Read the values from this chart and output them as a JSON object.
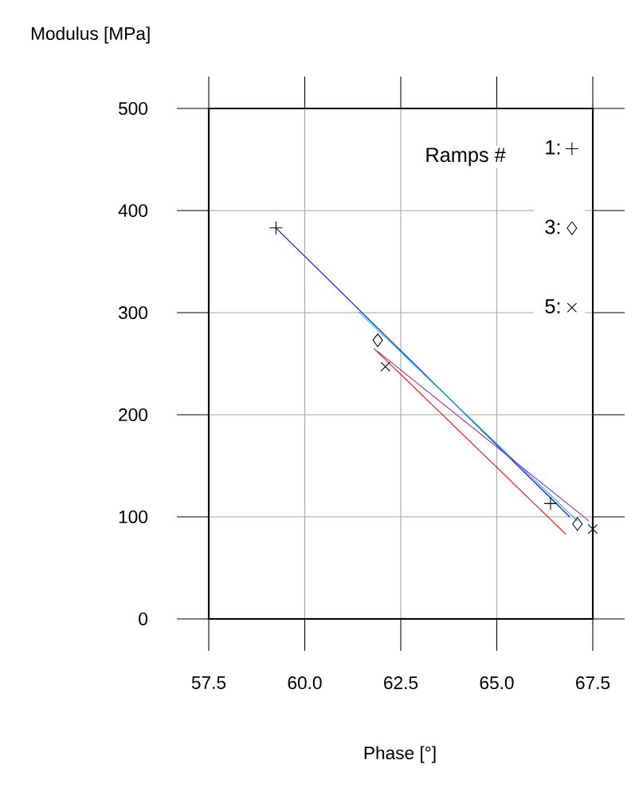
{
  "chart_data": {
    "type": "scatter",
    "xlabel": "Phase [°]",
    "ylabel": "Modulus [MPa]",
    "legend_title": "Ramps #",
    "xlim": [
      57.5,
      67.5
    ],
    "ylim": [
      0,
      500
    ],
    "xticks": [
      57.5,
      {
        "value": 60,
        "label": "60.0"
      },
      62.5,
      {
        "value": 65,
        "label": "65.0"
      },
      67.5
    ],
    "yticks": [
      0,
      100,
      200,
      300,
      400,
      500
    ],
    "grid": true,
    "legend": "top right",
    "series": [
      {
        "type": "line",
        "color": "#0000ff",
        "x": [
          59.25,
          66.9
        ],
        "values": [
          383,
          100
        ]
      },
      {
        "type": "line",
        "color": "#00c0c0",
        "x": [
          61.4,
          67.1
        ],
        "values": [
          301,
          96
        ]
      },
      {
        "type": "line",
        "color": "#a020a0",
        "x": [
          61.9,
          67.4
        ],
        "values": [
          262,
          96
        ]
      },
      {
        "type": "line",
        "color": "#ff0000",
        "x": [
          61.8,
          66.8
        ],
        "values": [
          265,
          83
        ]
      },
      {
        "name": "1:",
        "color": "#000000",
        "marker": "plus",
        "x": [
          59.25,
          66.4
        ],
        "values": [
          383,
          113
        ]
      },
      {
        "name": "3:",
        "color": "#000000",
        "marker": "diamond",
        "x": [
          61.9,
          67.1
        ],
        "values": [
          273,
          93
        ]
      },
      {
        "name": "5:",
        "color": "#000000",
        "marker": "cross",
        "x": [
          62.1,
          67.5
        ],
        "values": [
          247,
          88
        ]
      }
    ]
  }
}
